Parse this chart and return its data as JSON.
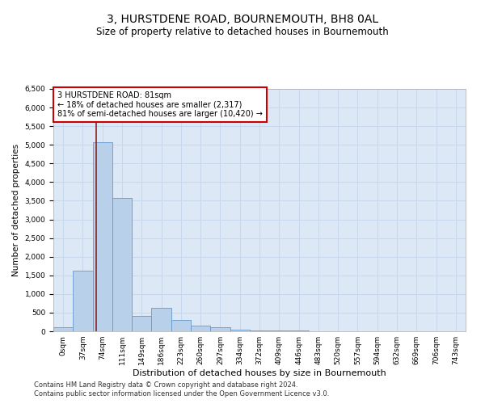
{
  "title": "3, HURSTDENE ROAD, BOURNEMOUTH, BH8 0AL",
  "subtitle": "Size of property relative to detached houses in Bournemouth",
  "xlabel": "Distribution of detached houses by size in Bournemouth",
  "ylabel": "Number of detached properties",
  "footer1": "Contains HM Land Registry data © Crown copyright and database right 2024.",
  "footer2": "Contains public sector information licensed under the Open Government Licence v3.0.",
  "annotation_line1": "3 HURSTDENE ROAD: 81sqm",
  "annotation_line2": "← 18% of detached houses are smaller (2,317)",
  "annotation_line3": "81% of semi-detached houses are larger (10,420) →",
  "bar_labels": [
    "0sqm",
    "37sqm",
    "74sqm",
    "111sqm",
    "149sqm",
    "186sqm",
    "223sqm",
    "260sqm",
    "297sqm",
    "334sqm",
    "372sqm",
    "409sqm",
    "446sqm",
    "483sqm",
    "520sqm",
    "557sqm",
    "594sqm",
    "632sqm",
    "669sqm",
    "706sqm",
    "743sqm"
  ],
  "bar_values": [
    100,
    1620,
    5080,
    3580,
    420,
    620,
    300,
    150,
    100,
    50,
    30,
    20,
    15,
    8,
    6,
    5,
    4,
    3,
    2,
    2,
    2
  ],
  "bar_color": "#b8d0ea",
  "bar_edge_color": "#6699cc",
  "ylim_max": 6500,
  "ytick_step": 500,
  "annotation_box_facecolor": "#ffffff",
  "annotation_box_edgecolor": "#cc0000",
  "red_line_color": "#882222",
  "grid_color": "#c8d8ec",
  "bg_color": "#dce8f5",
  "title_fontsize": 10,
  "subtitle_fontsize": 8.5,
  "ylabel_fontsize": 7.5,
  "xlabel_fontsize": 8,
  "tick_fontsize": 6.5,
  "annotation_fontsize": 7,
  "footer_fontsize": 6
}
